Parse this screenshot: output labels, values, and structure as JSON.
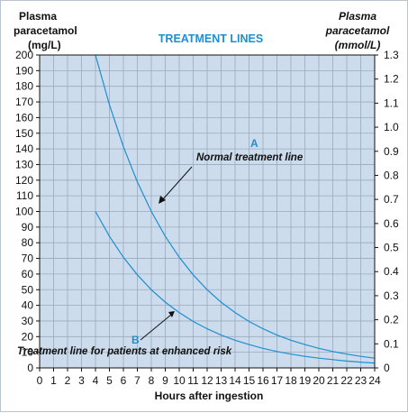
{
  "chart_data": {
    "type": "line",
    "title": "TREATMENT LINES",
    "left_axis_label": [
      "Plasma",
      "paracetamol",
      "(mg/L)"
    ],
    "right_axis_label": [
      "Plasma",
      "paracetamol",
      "(mmol/L)"
    ],
    "xlabel": "Hours after ingestion",
    "xlim": [
      0,
      24
    ],
    "ylim": [
      0,
      200
    ],
    "y2lim": [
      0,
      1.3
    ],
    "x_ticks": [
      "0",
      "1",
      "2",
      "3",
      "4",
      "5",
      "6",
      "7",
      "8",
      "9",
      "10",
      "11",
      "12",
      "13",
      "14",
      "15",
      "16",
      "17",
      "18",
      "19",
      "20",
      "21",
      "22",
      "23",
      "24"
    ],
    "y_ticks": [
      "0",
      "10",
      "20",
      "30",
      "40",
      "50",
      "60",
      "70",
      "80",
      "90",
      "100",
      "110",
      "120",
      "130",
      "140",
      "150",
      "160",
      "170",
      "180",
      "190",
      "200"
    ],
    "y2_ticks": [
      "0",
      "0.1",
      "0.2",
      "0.3",
      "0.4",
      "0.5",
      "0.6",
      "0.7",
      "0.8",
      "0.9",
      "1.0",
      "1.1",
      "1.2",
      "1.3"
    ],
    "grid": true,
    "series": [
      {
        "name": "A",
        "x": [
          4,
          5,
          6,
          7,
          8,
          9,
          10,
          11,
          12,
          13,
          14,
          15,
          16,
          17,
          18,
          19,
          20,
          21,
          22,
          23,
          24
        ],
        "values": [
          200,
          168.2,
          141.4,
          118.9,
          100,
          84.1,
          70.7,
          59.5,
          50,
          42,
          35.4,
          29.7,
          25,
          21,
          17.7,
          14.9,
          12.5,
          10.5,
          8.8,
          7.4,
          6.25
        ]
      },
      {
        "name": "B",
        "x": [
          4,
          5,
          6,
          7,
          8,
          9,
          10,
          11,
          12,
          13,
          14,
          15,
          16,
          17,
          18,
          19,
          20,
          21,
          22,
          23,
          24
        ],
        "values": [
          100,
          84.1,
          70.7,
          59.5,
          50,
          42,
          35.4,
          29.7,
          25,
          21,
          17.7,
          14.9,
          12.5,
          10.5,
          8.8,
          7.4,
          6.25,
          5.3,
          4.4,
          3.7,
          3.1
        ]
      }
    ],
    "annotations": [
      {
        "text": "Normal treatment line",
        "series": "A"
      },
      {
        "text": "Treatment line for patients at enhanced risk",
        "series": "B"
      }
    ],
    "colors": {
      "plot_bg": "#cddcec",
      "grid": "#98aabf",
      "line": "#1d8fd0",
      "title": "#1d8fd0"
    }
  }
}
